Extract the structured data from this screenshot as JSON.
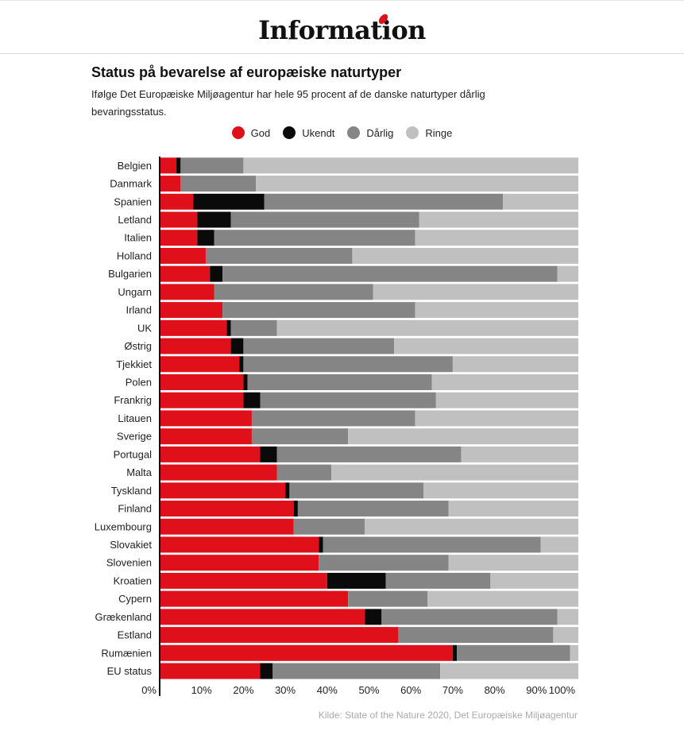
{
  "header": {
    "logo_text": "Information"
  },
  "chart_data": {
    "type": "bar",
    "orientation": "horizontal",
    "stacked": true,
    "title": "Status på bevarelse af europæiske naturtyper",
    "subtitle": "Ifølge Det Europæiske Miljøagentur har hele 95 procent af de danske naturtyper dårlig bevaringsstatus.",
    "legend_position": "top-center",
    "categories": [
      "Belgien",
      "Danmark",
      "Spanien",
      "Letland",
      "Italien",
      "Holland",
      "Bulgarien",
      "Ungarn",
      "Irland",
      "UK",
      "Østrig",
      "Tjekkiet",
      "Polen",
      "Frankrig",
      "Litauen",
      "Sverige",
      "Portugal",
      "Malta",
      "Tyskland",
      "Finland",
      "Luxembourg",
      "Slovakiet",
      "Slovenien",
      "Kroatien",
      "Cypern",
      "Grækenland",
      "Estland",
      "Rumænien",
      "EU status"
    ],
    "series": [
      {
        "name": "God",
        "color": "#e0101b",
        "values": [
          4,
          5,
          8,
          9,
          9,
          11,
          12,
          13,
          15,
          16,
          17,
          19,
          20,
          20,
          22,
          22,
          24,
          28,
          30,
          32,
          32,
          38,
          38,
          40,
          45,
          49,
          57,
          70,
          24
        ]
      },
      {
        "name": "Ukendt",
        "color": "#0a0a0a",
        "values": [
          1,
          0,
          17,
          8,
          4,
          0,
          3,
          0,
          0,
          1,
          3,
          1,
          1,
          4,
          0,
          0,
          4,
          0,
          1,
          1,
          0,
          1,
          0,
          14,
          0,
          4,
          0,
          1,
          3
        ]
      },
      {
        "name": "Dårlig",
        "color": "#858585",
        "values": [
          15,
          18,
          57,
          45,
          48,
          35,
          80,
          38,
          46,
          11,
          36,
          50,
          44,
          42,
          39,
          23,
          44,
          13,
          32,
          36,
          17,
          52,
          31,
          25,
          19,
          42,
          37,
          27,
          40
        ]
      },
      {
        "name": "Ringe",
        "color": "#c0c0c0",
        "values": [
          80,
          77,
          18,
          38,
          39,
          54,
          5,
          49,
          39,
          72,
          44,
          30,
          35,
          34,
          39,
          55,
          28,
          59,
          37,
          31,
          51,
          9,
          31,
          21,
          36,
          5,
          6,
          2,
          33
        ]
      }
    ],
    "xlim": [
      0,
      100
    ],
    "xticks": [
      "0%",
      "10%",
      "20%",
      "30%",
      "40%",
      "50%",
      "60%",
      "70%",
      "80%",
      "90%",
      "100%"
    ],
    "grid": false
  },
  "source": "Kilde: State of the Nature 2020, Det Europæiske Miljøagentur"
}
